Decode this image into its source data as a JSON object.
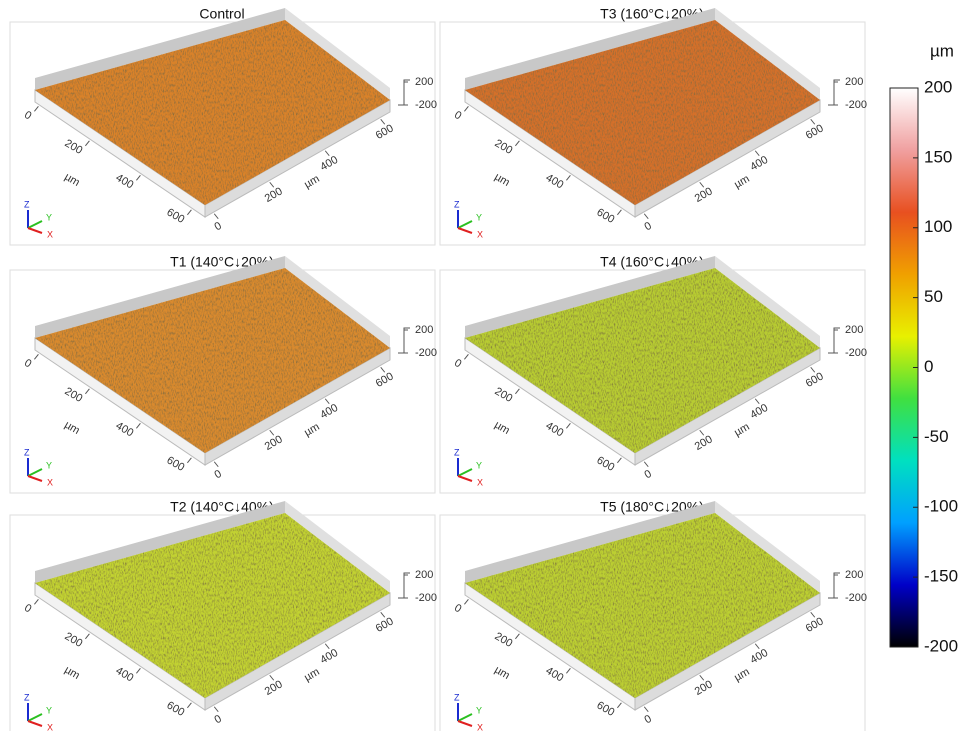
{
  "panels": [
    {
      "title": "Control",
      "color": "#d9822b",
      "x_ticks": [
        0,
        200,
        400,
        600
      ],
      "y_ticks": [
        0,
        200,
        400,
        600
      ],
      "x_unit": "µm",
      "y_unit": "µm",
      "z_ticks": [
        200,
        -200
      ],
      "axes": [
        "Z",
        "Y",
        "X"
      ]
    },
    {
      "title": "T3 (160°C↓20%)",
      "color": "#d4702a",
      "x_ticks": [
        0,
        200,
        400,
        600
      ],
      "y_ticks": [
        0,
        200,
        400,
        600
      ],
      "x_unit": "µm",
      "y_unit": "µm",
      "z_ticks": [
        200,
        -200
      ],
      "axes": [
        "Z",
        "Y",
        "X"
      ]
    },
    {
      "title": "T1 (140°C↓20%)",
      "color": "#d98a2e",
      "x_ticks": [
        0,
        200,
        400,
        600
      ],
      "y_ticks": [
        0,
        200,
        400,
        600
      ],
      "x_unit": "µm",
      "y_unit": "µm",
      "z_ticks": [
        200,
        -200
      ],
      "axes": [
        "Z",
        "Y",
        "X"
      ]
    },
    {
      "title": "T4 (160°C↓40%)",
      "color": "#b8cc30",
      "x_ticks": [
        0,
        200,
        400,
        600
      ],
      "y_ticks": [
        0,
        200,
        400,
        600
      ],
      "x_unit": "µm",
      "y_unit": "µm",
      "z_ticks": [
        200,
        -200
      ],
      "axes": [
        "Z",
        "Y",
        "X"
      ]
    },
    {
      "title": "T2 (140°C↓40%)",
      "color": "#c2d232",
      "x_ticks": [
        0,
        200,
        400,
        600
      ],
      "y_ticks": [
        0,
        200,
        400,
        600
      ],
      "x_unit": "µm",
      "y_unit": "µm",
      "z_ticks": [
        200,
        -200
      ],
      "axes": [
        "Z",
        "Y",
        "X"
      ]
    },
    {
      "title": "T5 (180°C↓20%)",
      "color": "#bccf30",
      "x_ticks": [
        0,
        200,
        400,
        600
      ],
      "y_ticks": [
        0,
        200,
        400,
        600
      ],
      "x_unit": "µm",
      "y_unit": "µm",
      "z_ticks": [
        200,
        -200
      ],
      "axes": [
        "Z",
        "Y",
        "X"
      ]
    }
  ],
  "colorbar": {
    "unit": "µm",
    "lim": [
      -200,
      200
    ],
    "ticks": [
      200,
      150,
      100,
      50,
      0,
      -50,
      -100,
      -150,
      -200
    ],
    "colors": [
      "#000000",
      "#0000c8",
      "#00a0ff",
      "#00e0c0",
      "#40e040",
      "#e8f000",
      "#f0a000",
      "#e85020",
      "#f0a0a0",
      "#ffffff"
    ]
  }
}
